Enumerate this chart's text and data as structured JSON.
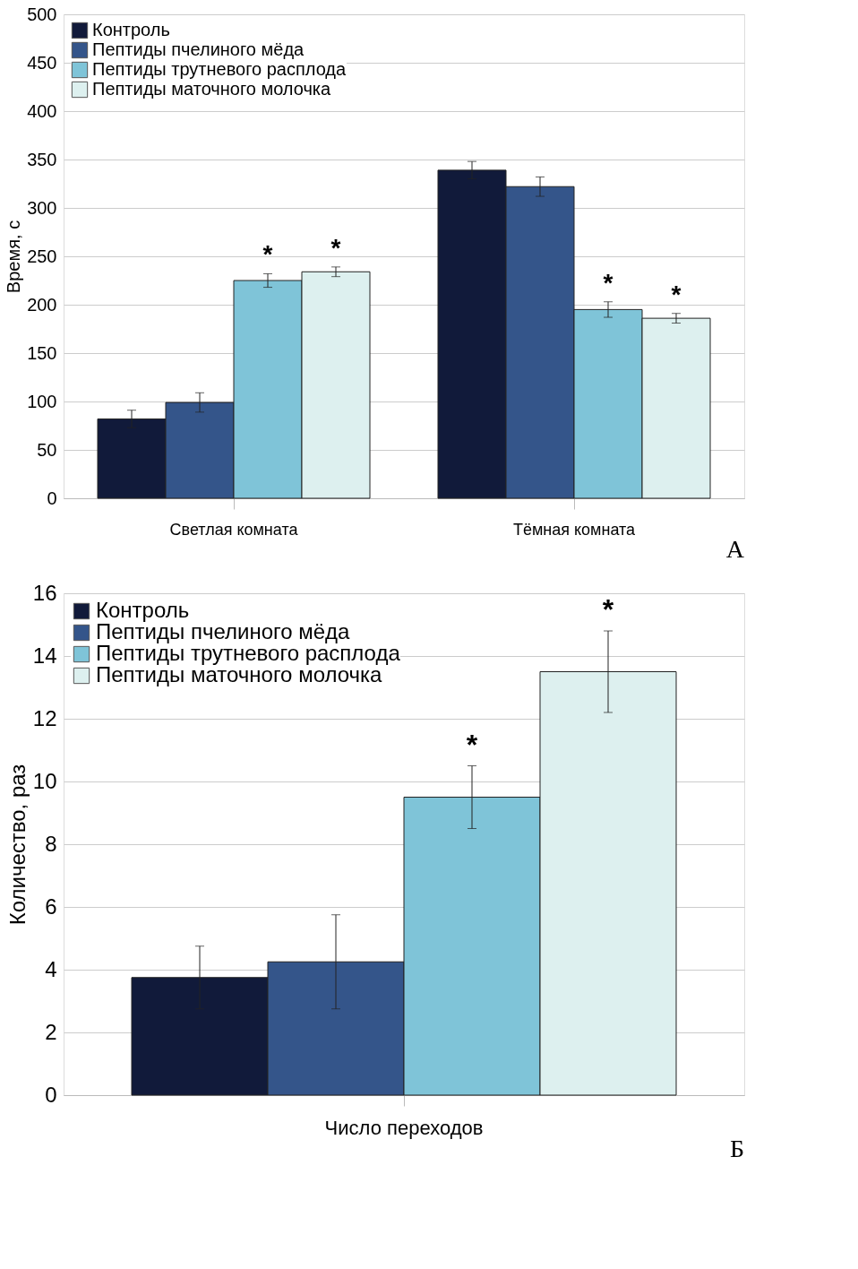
{
  "chart_data": [
    {
      "type": "bar",
      "title": "А",
      "ylabel": "Время, с",
      "categories": [
        "Светлая комната",
        "Тёмная комната"
      ],
      "series": [
        {
          "name": "Контроль",
          "color": "#111a3a",
          "values": [
            82,
            339
          ],
          "errors": [
            9,
            9
          ]
        },
        {
          "name": "Пептиды пчелиного мёда",
          "color": "#34558a",
          "values": [
            99,
            322
          ],
          "errors": [
            10,
            10
          ]
        },
        {
          "name": "Пептиды трутневого расплода",
          "color": "#7fc4d8",
          "values": [
            225,
            195
          ],
          "errors": [
            7,
            8
          ],
          "value_labels": [
            "*",
            "*"
          ]
        },
        {
          "name": "Пептиды маточного молочка",
          "color": "#ddf0ef",
          "values": [
            234,
            186
          ],
          "errors": [
            5,
            5
          ],
          "value_labels": [
            "*",
            "*"
          ]
        }
      ],
      "ylim": [
        0,
        500
      ],
      "yticks": [
        0,
        50,
        100,
        150,
        200,
        250,
        300,
        350,
        400,
        450,
        500
      ],
      "grid": "y",
      "legend": "top left"
    },
    {
      "type": "bar",
      "title": "Б",
      "ylabel": "Количество, раз",
      "categories": [
        "Число переходов"
      ],
      "series": [
        {
          "name": "Контроль",
          "color": "#111a3a",
          "values": [
            3.75
          ],
          "errors": [
            1
          ]
        },
        {
          "name": "Пептиды пчелиного мёда",
          "color": "#34558a",
          "values": [
            4.25
          ],
          "errors": [
            1.5
          ]
        },
        {
          "name": "Пептиды трутневого расплода",
          "color": "#7fc4d8",
          "values": [
            9.5
          ],
          "errors": [
            1
          ],
          "value_labels": [
            "*"
          ]
        },
        {
          "name": "Пептиды маточного молочка",
          "color": "#ddf0ef",
          "values": [
            13.5
          ],
          "errors": [
            1.3
          ],
          "value_labels": [
            "*"
          ]
        }
      ],
      "ylim": [
        0,
        16
      ],
      "yticks": [
        0,
        2,
        4,
        6,
        8,
        10,
        12,
        14,
        16
      ],
      "grid": "y",
      "legend": "top left"
    }
  ]
}
